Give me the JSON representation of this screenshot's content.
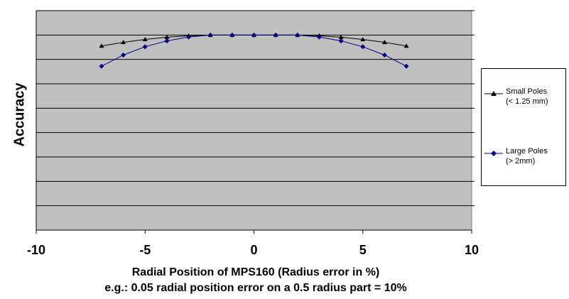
{
  "chart_data": {
    "type": "line",
    "title": "",
    "xlabel": "Radial Position of MPS160 (Radius error in %)",
    "subtitle": "e.g.: 0.05 radial position error on a 0.5 radius part = 10%",
    "ylabel": "Accuracy",
    "xlim": [
      -10,
      10
    ],
    "ylim": [
      0,
      9
    ],
    "x_ticks": [
      "-10",
      "-5",
      "0",
      "5",
      "10"
    ],
    "grid": true,
    "plot_background": "#c0c0c0",
    "legend_position": "right",
    "series": [
      {
        "name": "Small Poles",
        "note": "(< 1.25 mm)",
        "color": "#000000",
        "marker": "triangle",
        "x": [
          -7,
          -6,
          -5,
          -4,
          -3,
          -2,
          -1,
          0,
          1,
          2,
          3,
          4,
          5,
          6,
          7
        ],
        "y": [
          7.55,
          7.7,
          7.82,
          7.91,
          7.97,
          8.0,
          8.0,
          8.0,
          8.0,
          8.0,
          7.97,
          7.91,
          7.82,
          7.7,
          7.55
        ]
      },
      {
        "name": "Large Poles",
        "note": "(> 2mm)",
        "color": "#000080",
        "marker": "diamond",
        "x": [
          -7,
          -6,
          -5,
          -4,
          -3,
          -2,
          -1,
          0,
          1,
          2,
          3,
          4,
          5,
          6,
          7
        ],
        "y": [
          6.72,
          7.18,
          7.52,
          7.76,
          7.92,
          8.0,
          8.0,
          8.0,
          8.0,
          8.0,
          7.92,
          7.76,
          7.52,
          7.18,
          6.72
        ]
      }
    ]
  }
}
